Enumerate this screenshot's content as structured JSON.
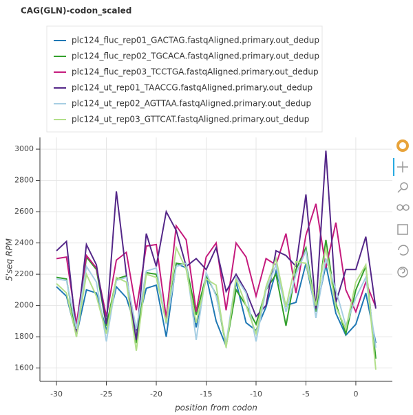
{
  "chart_data": {
    "type": "line",
    "title": "CAG(GLN)-codon_scaled",
    "x_label": "position from codon",
    "y_label": "5'seq RPM",
    "x": [
      -30,
      -29,
      -28,
      -27,
      -26,
      -25,
      -24,
      -23,
      -22,
      -21,
      -20,
      -19,
      -18,
      -17,
      -16,
      -15,
      -14,
      -13,
      -12,
      -11,
      -10,
      -9,
      -8,
      -7,
      -6,
      -5,
      -4,
      -3,
      -2,
      -1,
      0,
      1,
      2
    ],
    "xlim": [
      -31.66,
      3.66
    ],
    "xticks": [
      -30,
      -25,
      -20,
      -15,
      -10,
      -5,
      0
    ],
    "ylim": [
      1515,
      3075
    ],
    "yticks": [
      1600,
      1800,
      2000,
      2200,
      2400,
      2600,
      2800,
      3000
    ],
    "grid": true,
    "legend": "top-left",
    "series": [
      {
        "name": "plc124_fluc_rep01_GACTAG.fastqAligned.primary.out_dedup",
        "color": "#1f78b4",
        "values": [
          2120,
          2060,
          1810,
          2100,
          2080,
          1840,
          2120,
          2050,
          1850,
          2110,
          2130,
          1800,
          2270,
          2240,
          1860,
          2190,
          1900,
          1740,
          2150,
          1890,
          1840,
          1990,
          2220,
          2000,
          2020,
          2270,
          1960,
          2260,
          1950,
          1810,
          1880,
          2080,
          1760
        ]
      },
      {
        "name": "plc124_fluc_rep02_TGCACA.fastqAligned.primary.out_dedup",
        "color": "#33a02c",
        "values": [
          2180,
          2170,
          1800,
          2310,
          2230,
          1870,
          2170,
          2190,
          1760,
          2210,
          2200,
          1900,
          2270,
          2260,
          1940,
          2190,
          2070,
          1740,
          2100,
          2000,
          1880,
          2100,
          2200,
          1870,
          2230,
          2370,
          1960,
          2420,
          2010,
          1820,
          2100,
          2250,
          1660
        ]
      },
      {
        "name": "plc124_fluc_rep03_TCCTGA.fastqAligned.primary.out_dedup",
        "color": "#c51b7d",
        "values": [
          2300,
          2310,
          1880,
          2320,
          2240,
          1930,
          2290,
          2340,
          1970,
          2380,
          2390,
          1920,
          2510,
          2420,
          1960,
          2310,
          2400,
          1970,
          2400,
          2310,
          2060,
          2300,
          2260,
          2460,
          2080,
          2450,
          2650,
          2240,
          2530,
          2100,
          1960,
          2150,
          1990
        ]
      },
      {
        "name": "plc124_ut_rep01_TAACCG.fastqAligned.primary.out_dedup",
        "color": "#542788",
        "values": [
          2350,
          2410,
          1820,
          2390,
          2260,
          1880,
          2730,
          2200,
          1780,
          2460,
          2250,
          2600,
          2480,
          2250,
          2300,
          2230,
          2370,
          2090,
          2200,
          2090,
          1930,
          2000,
          2350,
          2320,
          2250,
          2710,
          1980,
          2990,
          2020,
          2230,
          2230,
          2440,
          1980
        ]
      },
      {
        "name": "plc124_ut_rep02_AGTTAA.fastqAligned.primary.out_dedup",
        "color": "#a6cee3",
        "values": [
          2170,
          2160,
          1850,
          2250,
          2150,
          1770,
          2160,
          2180,
          1850,
          2220,
          2240,
          1880,
          2250,
          2270,
          1780,
          2210,
          2060,
          1760,
          2180,
          2080,
          1770,
          2100,
          2260,
          1960,
          2200,
          2350,
          1920,
          2300,
          2100,
          1870,
          2050,
          2180,
          1730
        ]
      },
      {
        "name": "plc124_ut_rep03_GTTCAT.fastqAligned.primary.out_dedup",
        "color": "#b2df8a",
        "values": [
          2140,
          2080,
          1800,
          2200,
          2060,
          1820,
          2180,
          2150,
          1710,
          2200,
          2180,
          1890,
          2370,
          2230,
          1890,
          2170,
          2130,
          1730,
          2170,
          2000,
          1820,
          2120,
          2300,
          1990,
          2280,
          2270,
          2000,
          2370,
          1990,
          1850,
          2150,
          2260,
          1590
        ]
      }
    ]
  }
}
